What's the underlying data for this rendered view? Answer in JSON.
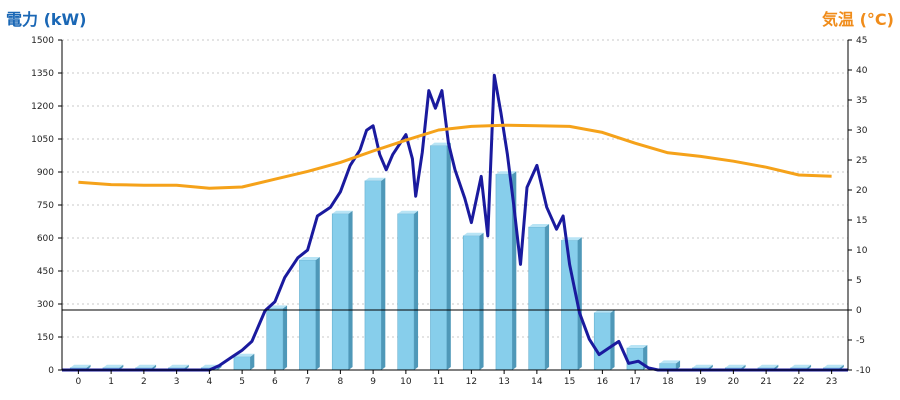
{
  "chart_data": {
    "type": "bar",
    "title_left": "電力 (kW)",
    "title_right": "気温 (°C)",
    "categories": [
      "0",
      "1",
      "2",
      "3",
      "4",
      "5",
      "6",
      "7",
      "8",
      "9",
      "10",
      "11",
      "12",
      "13",
      "14",
      "15",
      "16",
      "17",
      "18",
      "19",
      "20",
      "21",
      "22",
      "23"
    ],
    "y_left": {
      "min": 0,
      "max": 1500,
      "ticks": [
        0,
        150,
        300,
        450,
        600,
        750,
        900,
        1050,
        1200,
        1350,
        1500
      ]
    },
    "y_right": {
      "min": -10,
      "max": 45,
      "ticks": [
        -10,
        -5,
        0,
        5,
        10,
        15,
        20,
        25,
        30,
        35,
        40,
        45
      ]
    },
    "bars": {
      "values": [
        10,
        10,
        10,
        10,
        10,
        60,
        280,
        500,
        710,
        860,
        710,
        1020,
        610,
        890,
        650,
        590,
        260,
        100,
        30,
        10,
        10,
        10,
        10,
        10
      ],
      "color": "#87ceeb"
    },
    "power_line": {
      "color": "#1a1a9e",
      "points": [
        [
          -0.5,
          0
        ],
        [
          0,
          0
        ],
        [
          1,
          0
        ],
        [
          2,
          0
        ],
        [
          3,
          0
        ],
        [
          4,
          0
        ],
        [
          4.3,
          20
        ],
        [
          4.7,
          60
        ],
        [
          5,
          90
        ],
        [
          5.3,
          130
        ],
        [
          5.5,
          200
        ],
        [
          5.7,
          270
        ],
        [
          6,
          310
        ],
        [
          6.3,
          420
        ],
        [
          6.7,
          510
        ],
        [
          7,
          545
        ],
        [
          7.3,
          700
        ],
        [
          7.7,
          740
        ],
        [
          8,
          810
        ],
        [
          8.3,
          930
        ],
        [
          8.6,
          1000
        ],
        [
          8.8,
          1090
        ],
        [
          9,
          1110
        ],
        [
          9.2,
          980
        ],
        [
          9.4,
          910
        ],
        [
          9.6,
          980
        ],
        [
          10,
          1070
        ],
        [
          10.2,
          960
        ],
        [
          10.3,
          790
        ],
        [
          10.5,
          990
        ],
        [
          10.7,
          1270
        ],
        [
          10.9,
          1190
        ],
        [
          11.1,
          1270
        ],
        [
          11.3,
          1030
        ],
        [
          11.5,
          910
        ],
        [
          11.8,
          780
        ],
        [
          12,
          670
        ],
        [
          12.3,
          880
        ],
        [
          12.5,
          610
        ],
        [
          12.7,
          1340
        ],
        [
          12.9,
          1170
        ],
        [
          13.1,
          980
        ],
        [
          13.3,
          740
        ],
        [
          13.5,
          480
        ],
        [
          13.7,
          830
        ],
        [
          14,
          930
        ],
        [
          14.3,
          740
        ],
        [
          14.6,
          640
        ],
        [
          14.8,
          700
        ],
        [
          15,
          480
        ],
        [
          15.3,
          260
        ],
        [
          15.6,
          140
        ],
        [
          15.9,
          70
        ],
        [
          16.2,
          100
        ],
        [
          16.5,
          130
        ],
        [
          16.8,
          30
        ],
        [
          17.1,
          40
        ],
        [
          17.4,
          10
        ],
        [
          17.7,
          0
        ],
        [
          18,
          0
        ],
        [
          19,
          0
        ],
        [
          20,
          0
        ],
        [
          21,
          0
        ],
        [
          22,
          0
        ],
        [
          23,
          0
        ],
        [
          23.5,
          0
        ]
      ]
    },
    "temperature_line": {
      "color": "#f5a21a",
      "points": [
        [
          0,
          21.3
        ],
        [
          1,
          20.9
        ],
        [
          2,
          20.8
        ],
        [
          3,
          20.8
        ],
        [
          4,
          20.3
        ],
        [
          5,
          20.5
        ],
        [
          6,
          21.8
        ],
        [
          7,
          23.1
        ],
        [
          8,
          24.6
        ],
        [
          9,
          26.5
        ],
        [
          10,
          28.3
        ],
        [
          11,
          30.0
        ],
        [
          12,
          30.6
        ],
        [
          13,
          30.8
        ],
        [
          14,
          30.7
        ],
        [
          15,
          30.6
        ],
        [
          16,
          29.6
        ],
        [
          17,
          27.8
        ],
        [
          18,
          26.2
        ],
        [
          19,
          25.6
        ],
        [
          20,
          24.8
        ],
        [
          21,
          23.8
        ],
        [
          22,
          22.5
        ],
        [
          23,
          22.3
        ]
      ]
    }
  }
}
